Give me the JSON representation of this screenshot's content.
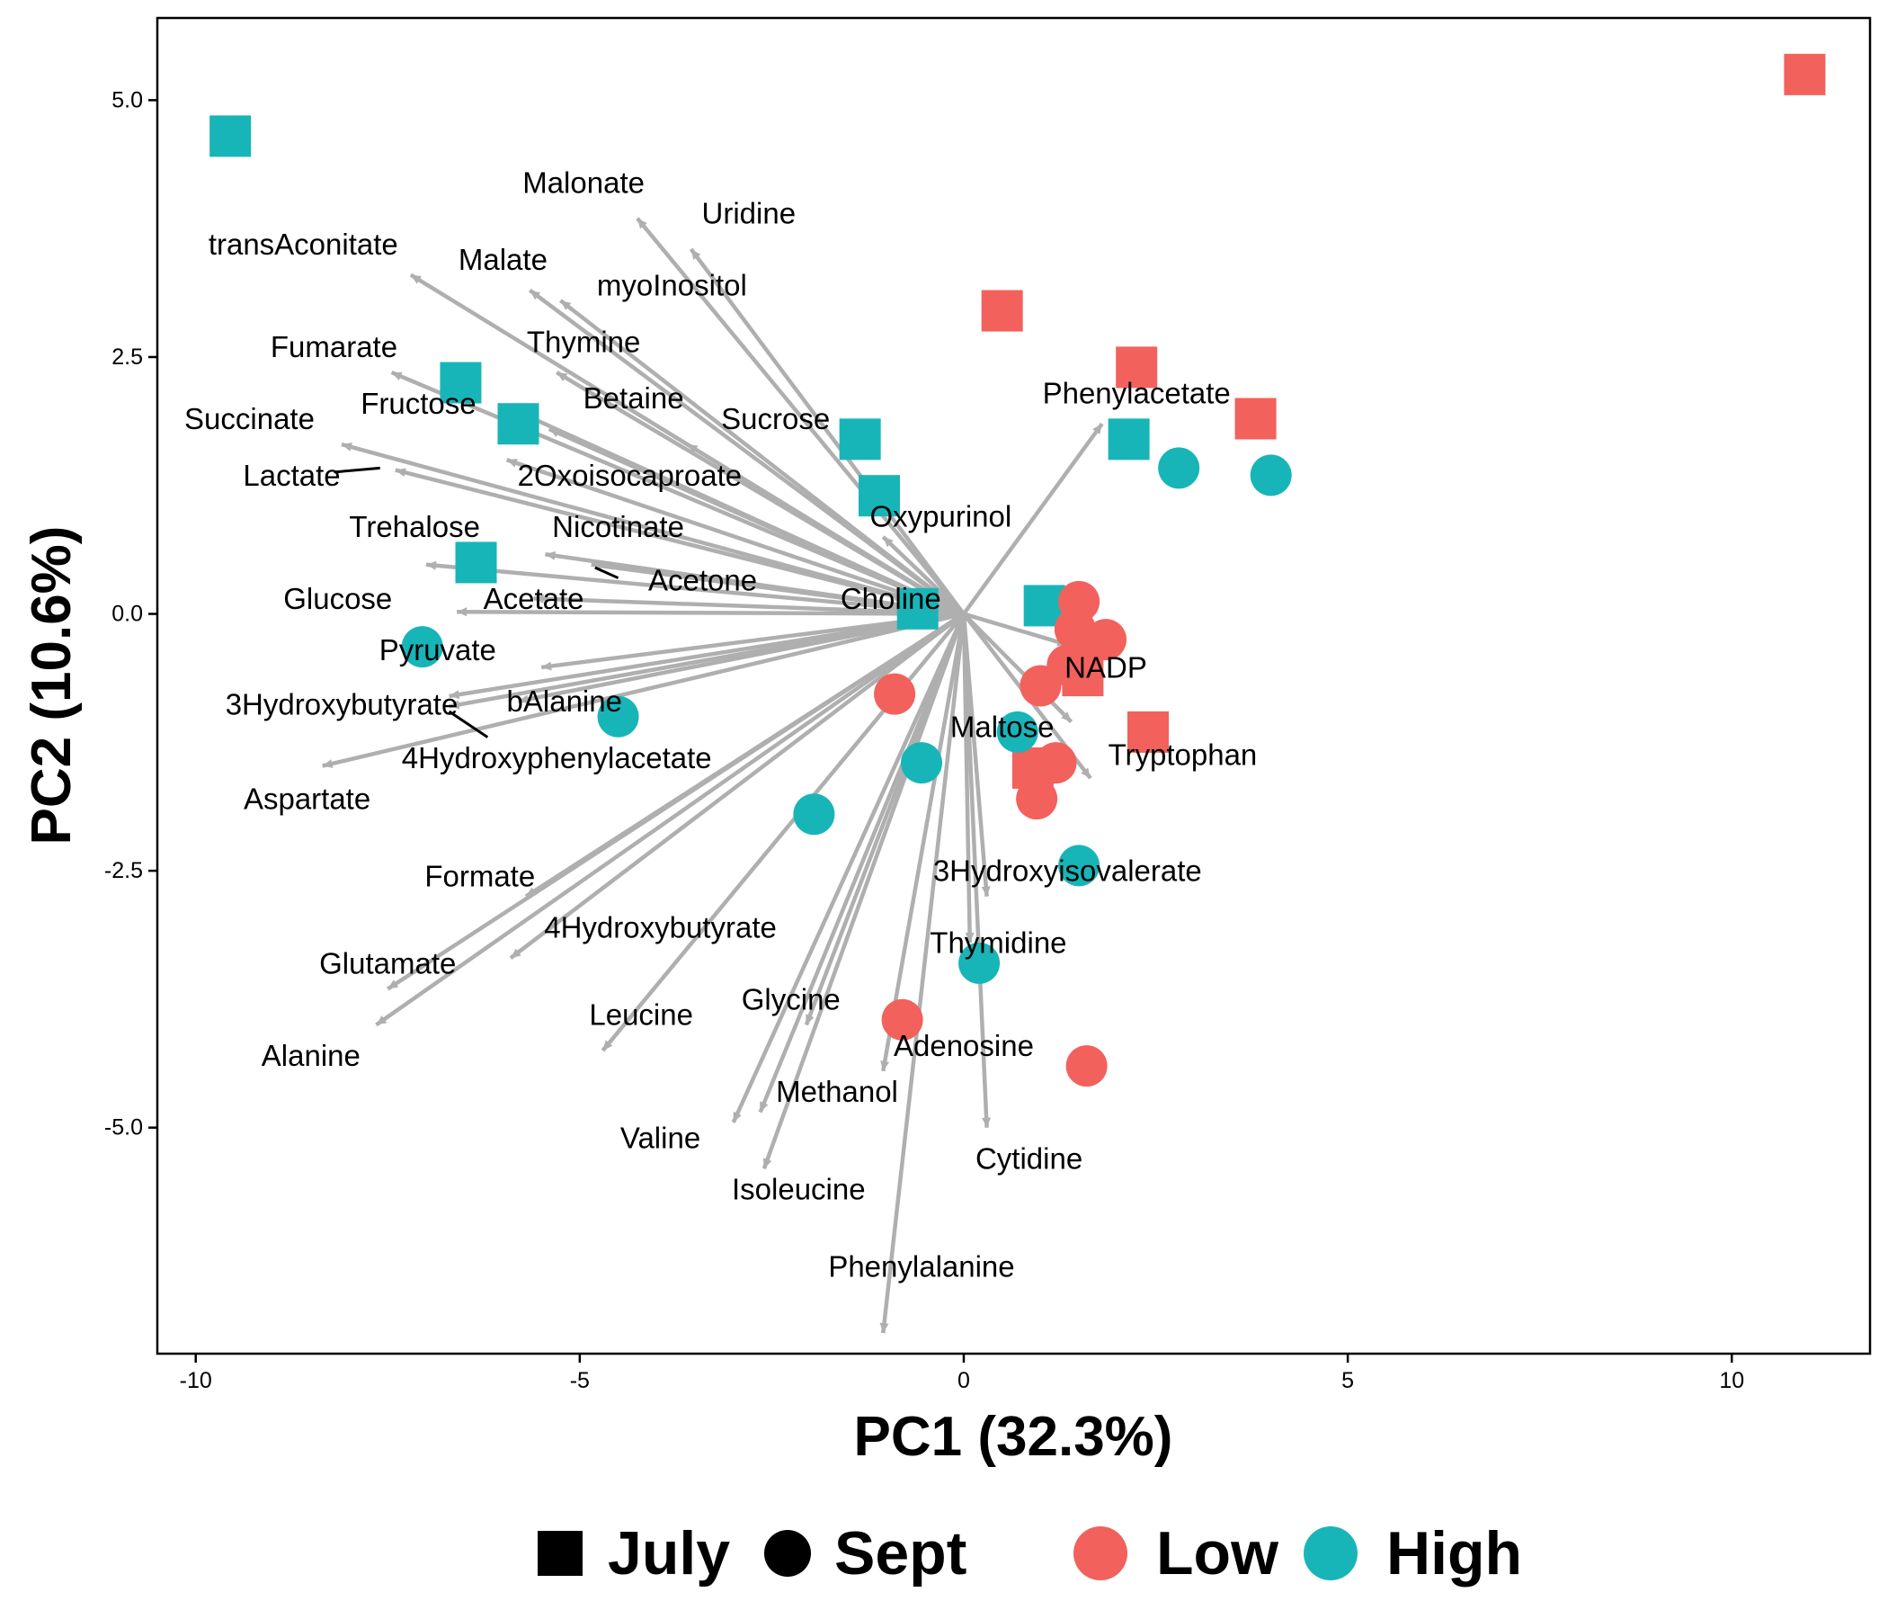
{
  "chart_data": {
    "type": "scatter",
    "xlabel": "PC1 (32.3%)",
    "ylabel": "PC2 (10.6%)",
    "xlim": [
      -10.5,
      11.8
    ],
    "ylim": [
      -7.2,
      5.8
    ],
    "x_ticks": [
      -10,
      -5,
      0,
      5,
      10
    ],
    "y_ticks": [
      -5.0,
      -2.5,
      0.0,
      2.5,
      5.0
    ],
    "x_tick_labels": [
      "-10",
      "-5",
      "0",
      "5",
      "10"
    ],
    "y_tick_labels": [
      "-5.0",
      "-2.5",
      "0.0",
      "2.5",
      "5.0"
    ],
    "grid": false,
    "legend": {
      "placement": "bottom",
      "shape_entries": [
        {
          "label": "July",
          "shape": "square"
        },
        {
          "label": "Sept",
          "shape": "circle"
        }
      ],
      "color_entries": [
        {
          "label": "Low",
          "color": "#F2615C"
        },
        {
          "label": "High",
          "color": "#18B5B8"
        }
      ]
    },
    "colors": {
      "Low": "#F2615C",
      "High": "#18B5B8",
      "arrow": "#AFAFAF"
    },
    "points": [
      {
        "x": -9.55,
        "y": 4.65,
        "month": "July",
        "group": "High"
      },
      {
        "x": -6.55,
        "y": 2.25,
        "month": "July",
        "group": "High"
      },
      {
        "x": -5.8,
        "y": 1.85,
        "month": "July",
        "group": "High"
      },
      {
        "x": -6.35,
        "y": 0.5,
        "month": "July",
        "group": "High"
      },
      {
        "x": -1.35,
        "y": 1.7,
        "month": "July",
        "group": "High"
      },
      {
        "x": -1.1,
        "y": 1.15,
        "month": "July",
        "group": "High"
      },
      {
        "x": 1.05,
        "y": 0.08,
        "month": "July",
        "group": "High"
      },
      {
        "x": 2.15,
        "y": 1.7,
        "month": "July",
        "group": "High"
      },
      {
        "x": -0.6,
        "y": 0.05,
        "month": "July",
        "group": "High"
      },
      {
        "x": 10.95,
        "y": 5.25,
        "month": "July",
        "group": "Low"
      },
      {
        "x": 0.5,
        "y": 2.95,
        "month": "July",
        "group": "Low"
      },
      {
        "x": 2.25,
        "y": 2.4,
        "month": "July",
        "group": "Low"
      },
      {
        "x": 3.8,
        "y": 1.9,
        "month": "July",
        "group": "Low"
      },
      {
        "x": 2.4,
        "y": -1.15,
        "month": "July",
        "group": "Low"
      },
      {
        "x": 1.55,
        "y": -0.6,
        "month": "July",
        "group": "Low"
      },
      {
        "x": 0.9,
        "y": -1.5,
        "month": "July",
        "group": "Low"
      },
      {
        "x": 2.8,
        "y": 1.42,
        "month": "Sept",
        "group": "High"
      },
      {
        "x": 4.0,
        "y": 1.35,
        "month": "Sept",
        "group": "High"
      },
      {
        "x": -7.05,
        "y": -0.32,
        "month": "Sept",
        "group": "High"
      },
      {
        "x": -4.5,
        "y": -1.0,
        "month": "Sept",
        "group": "High"
      },
      {
        "x": -0.55,
        "y": -1.45,
        "month": "Sept",
        "group": "High"
      },
      {
        "x": -1.95,
        "y": -1.95,
        "month": "Sept",
        "group": "High"
      },
      {
        "x": 0.7,
        "y": -1.15,
        "month": "Sept",
        "group": "High"
      },
      {
        "x": 1.5,
        "y": -2.45,
        "month": "Sept",
        "group": "High"
      },
      {
        "x": 0.2,
        "y": -3.4,
        "month": "Sept",
        "group": "High"
      },
      {
        "x": 1.5,
        "y": 0.12,
        "month": "Sept",
        "group": "Low"
      },
      {
        "x": 1.45,
        "y": -0.15,
        "month": "Sept",
        "group": "Low"
      },
      {
        "x": 1.85,
        "y": -0.25,
        "month": "Sept",
        "group": "Low"
      },
      {
        "x": 1.55,
        "y": -0.35,
        "month": "Sept",
        "group": "Low"
      },
      {
        "x": 1.35,
        "y": -0.5,
        "month": "Sept",
        "group": "Low"
      },
      {
        "x": 1.0,
        "y": -0.7,
        "month": "Sept",
        "group": "Low"
      },
      {
        "x": -0.9,
        "y": -0.78,
        "month": "Sept",
        "group": "Low"
      },
      {
        "x": 1.2,
        "y": -1.45,
        "month": "Sept",
        "group": "Low"
      },
      {
        "x": 1.0,
        "y": -1.5,
        "month": "Sept",
        "group": "Low"
      },
      {
        "x": 0.95,
        "y": -1.8,
        "month": "Sept",
        "group": "Low"
      },
      {
        "x": -0.8,
        "y": -3.95,
        "month": "Sept",
        "group": "Low"
      },
      {
        "x": 1.6,
        "y": -4.4,
        "month": "Sept",
        "group": "Low"
      }
    ],
    "loadings": [
      {
        "name": "Malonate",
        "x": -4.25,
        "y": 3.85,
        "lx": -4.95,
        "ly": 4.2
      },
      {
        "name": "Uridine",
        "x": -3.55,
        "y": 3.55,
        "lx": -2.8,
        "ly": 3.9
      },
      {
        "name": "transAconitate",
        "x": -7.2,
        "y": 3.3,
        "lx": -8.6,
        "ly": 3.6
      },
      {
        "name": "Malate",
        "x": -5.65,
        "y": 3.15,
        "lx": -6.0,
        "ly": 3.45
      },
      {
        "name": "myoInositol",
        "x": -5.25,
        "y": 3.05,
        "lx": -3.8,
        "ly": 3.2
      },
      {
        "name": "Fumarate",
        "x": -7.45,
        "y": 2.35,
        "lx": -8.2,
        "ly": 2.6
      },
      {
        "name": "Thymine",
        "x": -5.3,
        "y": 2.35,
        "lx": -4.95,
        "ly": 2.65
      },
      {
        "name": "Succinate",
        "x": -8.1,
        "y": 1.65,
        "lx": -9.3,
        "ly": 1.9
      },
      {
        "name": "Fructose",
        "x": -5.9,
        "y": 2.0,
        "lx": -7.1,
        "ly": 2.05
      },
      {
        "name": "Betaine",
        "x": -5.4,
        "y": 1.8,
        "lx": -4.3,
        "ly": 2.1
      },
      {
        "name": "Sucrose",
        "x": -3.6,
        "y": 1.65,
        "lx": -2.45,
        "ly": 1.9
      },
      {
        "name": "Phenylacetate",
        "x": 1.8,
        "y": 1.85,
        "lx": 2.25,
        "ly": 2.15
      },
      {
        "name": "Lactate",
        "x": -7.4,
        "y": 1.4,
        "lx": -8.75,
        "ly": 1.35
      },
      {
        "name": "2Oxoisocaproate",
        "x": -5.95,
        "y": 1.5,
        "lx": -4.35,
        "ly": 1.35
      },
      {
        "name": "Nicotinate",
        "x": -5.45,
        "y": 0.58,
        "lx": -4.5,
        "ly": 0.85
      },
      {
        "name": "Trehalose",
        "x": -7.0,
        "y": 0.48,
        "lx": -7.15,
        "ly": 0.85
      },
      {
        "name": "Oxypurinol",
        "x": -1.05,
        "y": 0.75,
        "lx": -0.3,
        "ly": 0.95
      },
      {
        "name": "Acetone",
        "x": -4.85,
        "y": 0.48,
        "lx": -3.4,
        "ly": 0.33
      },
      {
        "name": "Glucose",
        "x": -6.6,
        "y": 0.02,
        "lx": -8.15,
        "ly": 0.15
      },
      {
        "name": "Acetate",
        "x": -5.6,
        "y": 0.15,
        "lx": -5.6,
        "ly": 0.15
      },
      {
        "name": "Choline",
        "x": -0.9,
        "y": 0.15,
        "lx": -0.95,
        "ly": 0.15
      },
      {
        "name": "Pyruvate",
        "x": -5.5,
        "y": -0.52,
        "lx": -6.85,
        "ly": -0.35
      },
      {
        "name": "NADP",
        "x": 1.35,
        "y": -0.3,
        "lx": 1.85,
        "ly": -0.52
      },
      {
        "name": "3Hydroxybutyrate",
        "x": -6.7,
        "y": -0.8,
        "lx": -8.1,
        "ly": -0.88
      },
      {
        "name": "bAlanine",
        "x": -6.7,
        "y": -0.9,
        "lx": -5.2,
        "ly": -0.85
      },
      {
        "name": "4Hydroxyphenylacetate",
        "x": -5.8,
        "y": -0.85,
        "lx": -5.3,
        "ly": -1.4
      },
      {
        "name": "Maltose",
        "x": 1.4,
        "y": -1.05,
        "lx": 0.5,
        "ly": -1.1
      },
      {
        "name": "Tryptophan",
        "x": 1.65,
        "y": -1.6,
        "lx": 2.85,
        "ly": -1.37
      },
      {
        "name": "Aspartate",
        "x": -8.35,
        "y": -1.48,
        "lx": -8.55,
        "ly": -1.8
      },
      {
        "name": "Formate",
        "x": -5.7,
        "y": -2.75,
        "lx": -6.3,
        "ly": -2.55
      },
      {
        "name": "3Hydroxyisovalerate",
        "x": 0.3,
        "y": -2.75,
        "lx": 1.35,
        "ly": -2.5
      },
      {
        "name": "4Hydroxybutyrate",
        "x": -5.9,
        "y": -3.35,
        "lx": -3.95,
        "ly": -3.05
      },
      {
        "name": "Thymidine",
        "x": 0.08,
        "y": -3.2,
        "lx": 0.45,
        "ly": -3.2
      },
      {
        "name": "Glutamate",
        "x": -7.5,
        "y": -3.65,
        "lx": -7.5,
        "ly": -3.4
      },
      {
        "name": "Glycine",
        "x": -2.05,
        "y": -4.0,
        "lx": -2.25,
        "ly": -3.75
      },
      {
        "name": "Leucine",
        "x": -4.7,
        "y": -4.25,
        "lx": -4.2,
        "ly": -3.9
      },
      {
        "name": "Adenosine",
        "x": -1.05,
        "y": -4.45,
        "lx": 0.0,
        "ly": -4.2
      },
      {
        "name": "Alanine",
        "x": -7.65,
        "y": -4.0,
        "lx": -8.5,
        "ly": -4.3
      },
      {
        "name": "Methanol",
        "x": -2.65,
        "y": -4.85,
        "lx": -1.65,
        "ly": -4.65
      },
      {
        "name": "Valine",
        "x": -3.0,
        "y": -4.95,
        "lx": -3.95,
        "ly": -5.1
      },
      {
        "name": "Cytidine",
        "x": 0.3,
        "y": -5.0,
        "lx": 0.85,
        "ly": -5.3
      },
      {
        "name": "Isoleucine",
        "x": -2.6,
        "y": -5.4,
        "lx": -2.15,
        "ly": -5.6
      },
      {
        "name": "Phenylalanine",
        "x": -1.05,
        "y": -7.0,
        "lx": -0.55,
        "ly": -6.35
      }
    ],
    "label_leaders": [
      {
        "from": [
          -8.2,
          1.38
        ],
        "to": [
          -7.6,
          1.42
        ]
      },
      {
        "from": [
          -4.8,
          0.45
        ],
        "to": [
          -4.5,
          0.35
        ]
      },
      {
        "from": [
          -6.7,
          -0.95
        ],
        "to": [
          -6.2,
          -1.2
        ]
      }
    ]
  }
}
